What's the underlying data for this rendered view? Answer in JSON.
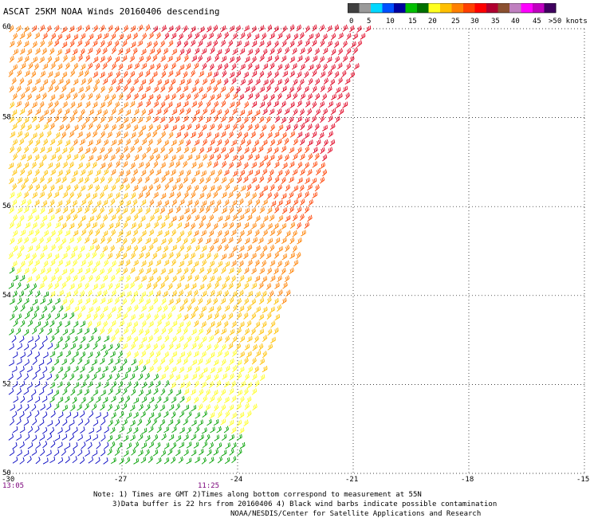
{
  "title": "ASCAT 25KM NOAA Winds 20160406 descending",
  "legend": {
    "labels": [
      "0",
      "5",
      "10",
      "15",
      "20",
      "25",
      "30",
      "35",
      "40",
      "45",
      ">50 knots"
    ],
    "colors": [
      "#404040",
      "#9a9a9a",
      "#00d8ff",
      "#0050ff",
      "#0000a0",
      "#00c000",
      "#007000",
      "#ffff20",
      "#ffc000",
      "#ff8000",
      "#ff4000",
      "#ff0000",
      "#b00030",
      "#8b5030",
      "#c080c0",
      "#ff00ff",
      "#c000c0",
      "#400060"
    ]
  },
  "axes": {
    "lon_labels": [
      "-30",
      "-27",
      "-24",
      "-21",
      "-18",
      "-15"
    ],
    "lat_labels": [
      "60",
      "58",
      "56",
      "54",
      "52",
      "50"
    ],
    "lon_range": [
      -30,
      -15
    ],
    "lat_range": [
      50,
      60
    ]
  },
  "times": [
    "13:05",
    "11:25"
  ],
  "notes": [
    "Note: 1) Times are GMT 2)Times along bottom correspond to measurement at 55N",
    "3)Data buffer is 22 hrs from 20160406 4) Black wind barbs indicate possible contamination",
    "NOAA/NESDIS/Center for Satellite Applications and Research"
  ],
  "swath": {
    "description_free": true,
    "east_edge_lon_top": -20.5,
    "east_edge_lon_bottom": -24,
    "zones": [
      {
        "speed": "35-40",
        "color": "#ff0000"
      },
      {
        "speed": "30-35",
        "color": "#ff4000"
      },
      {
        "speed": "25-30",
        "color": "#ff8000"
      },
      {
        "speed": "20-25",
        "color": "#ffc000"
      },
      {
        "speed": "15-20",
        "color": "#ffff20"
      },
      {
        "speed": "10-15",
        "color": "#00c000"
      },
      {
        "speed": "5-10",
        "color": "#0000c0"
      }
    ]
  }
}
